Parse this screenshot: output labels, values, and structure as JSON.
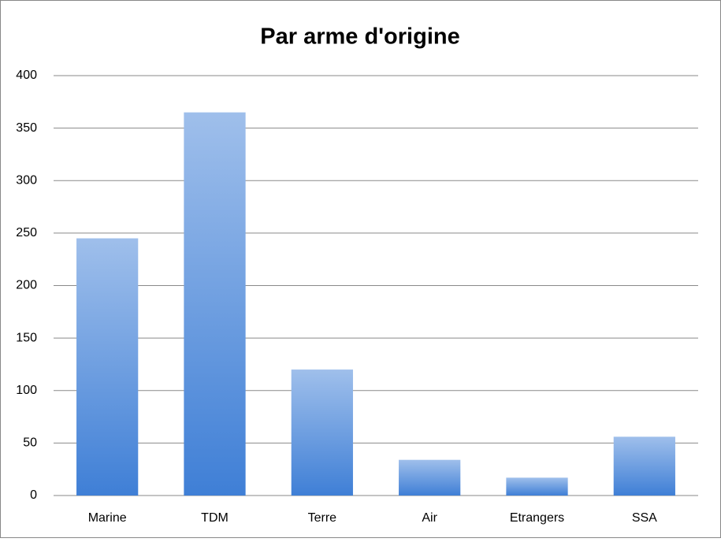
{
  "chart_data": {
    "type": "bar",
    "title": "Par arme d'origine",
    "categories": [
      "Marine",
      "TDM",
      "Terre",
      "Air",
      "Etrangers",
      "SSA"
    ],
    "values": [
      245,
      365,
      120,
      34,
      17,
      56
    ],
    "color": "#3f7fd6",
    "ylim": [
      0,
      400
    ],
    "yticks": [
      0,
      50,
      100,
      150,
      200,
      250,
      300,
      350,
      400
    ],
    "grid": true
  }
}
